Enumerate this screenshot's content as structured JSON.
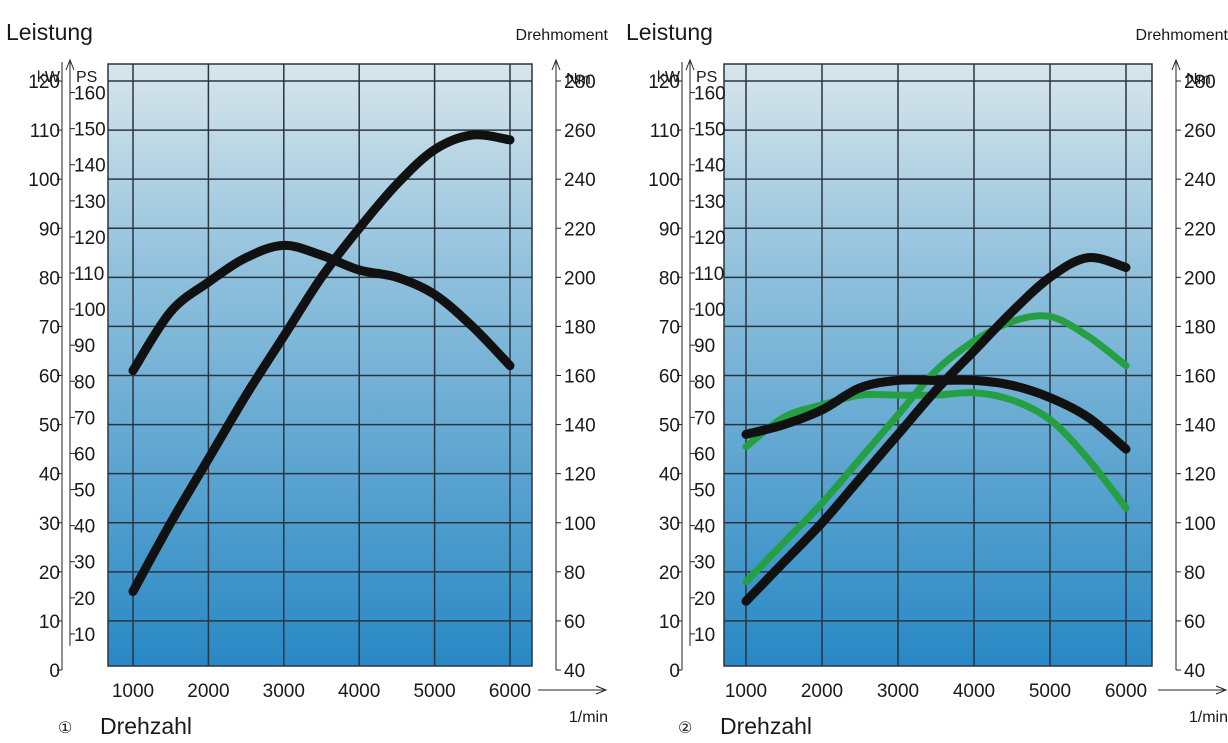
{
  "chart_data": [
    {
      "type": "line",
      "number": "①",
      "title_left": "Leistung",
      "title_right": "Drehmoment",
      "xlabel": "Drehzahl",
      "xunit": "1/min",
      "kw_unit": "kW",
      "ps_unit": "PS",
      "nm_unit": "Nm",
      "x_ticks": [
        "1000",
        "2000",
        "3000",
        "4000",
        "5000",
        "6000"
      ],
      "kw_ticks": [
        "0",
        "10",
        "20",
        "30",
        "40",
        "50",
        "60",
        "70",
        "80",
        "90",
        "100",
        "110",
        "120"
      ],
      "ps_ticks": [
        "10",
        "20",
        "30",
        "40",
        "50",
        "60",
        "70",
        "80",
        "90",
        "100",
        "110",
        "120",
        "130",
        "140",
        "150",
        "160"
      ],
      "nm_ticks": [
        "40",
        "60",
        "80",
        "100",
        "120",
        "140",
        "160",
        "180",
        "200",
        "220",
        "240",
        "260",
        "280"
      ],
      "xlim": [
        1000,
        6000
      ],
      "kw_lim": [
        0,
        120
      ],
      "nm_lim": [
        40,
        280
      ],
      "grid": true,
      "colors": {
        "black": "#111111",
        "green": "#24a043",
        "plot_top": "#d8e6ec",
        "plot_bottom": "#2888c4"
      },
      "series": [
        {
          "color": "black",
          "axis": "nm",
          "x": [
            1000,
            1500,
            2000,
            2500,
            3000,
            3500,
            4000,
            4500,
            5000,
            5500,
            6000
          ],
          "y": [
            162,
            186,
            198,
            208,
            213,
            209,
            203,
            200,
            193,
            180,
            164
          ]
        },
        {
          "color": "black",
          "axis": "kw",
          "x": [
            1000,
            1500,
            2000,
            2500,
            3000,
            3500,
            4000,
            4500,
            5000,
            5500,
            6000
          ],
          "y": [
            16,
            30,
            43,
            56,
            68,
            80,
            90,
            99,
            106,
            109,
            108
          ]
        }
      ]
    },
    {
      "type": "line",
      "number": "②",
      "title_left": "Leistung",
      "title_right": "Drehmoment",
      "xlabel": "Drehzahl",
      "xunit": "1/min",
      "kw_unit": "kW",
      "ps_unit": "PS",
      "nm_unit": "Nm",
      "x_ticks": [
        "1000",
        "2000",
        "3000",
        "4000",
        "5000",
        "6000"
      ],
      "kw_ticks": [
        "0",
        "10",
        "20",
        "30",
        "40",
        "50",
        "60",
        "70",
        "80",
        "90",
        "100",
        "110",
        "120"
      ],
      "ps_ticks": [
        "10",
        "20",
        "30",
        "40",
        "50",
        "60",
        "70",
        "80",
        "90",
        "100",
        "110",
        "120",
        "130",
        "140",
        "150",
        "160"
      ],
      "nm_ticks": [
        "40",
        "60",
        "80",
        "100",
        "120",
        "140",
        "160",
        "180",
        "200",
        "220",
        "240",
        "260",
        "280"
      ],
      "xlim": [
        1000,
        6000
      ],
      "kw_lim": [
        0,
        120
      ],
      "nm_lim": [
        40,
        280
      ],
      "grid": true,
      "colors": {
        "black": "#111111",
        "green": "#24a043",
        "plot_top": "#d8e6ec",
        "plot_bottom": "#2888c4"
      },
      "series": [
        {
          "color": "green",
          "axis": "nm",
          "x": [
            1000,
            1500,
            2000,
            2500,
            3000,
            3500,
            4000,
            4500,
            5000,
            5500,
            6000
          ],
          "y": [
            131,
            143,
            148,
            152,
            152,
            152,
            153,
            150,
            142,
            126,
            106
          ]
        },
        {
          "color": "green",
          "axis": "kw",
          "x": [
            1000,
            1500,
            2000,
            2500,
            3000,
            3500,
            4000,
            4500,
            5000,
            5500,
            6000
          ],
          "y": [
            18,
            26,
            34,
            43,
            52,
            61,
            67,
            71,
            72,
            68,
            62
          ]
        },
        {
          "color": "black",
          "axis": "nm",
          "x": [
            1000,
            1500,
            2000,
            2500,
            3000,
            3500,
            4000,
            4500,
            5000,
            5500,
            6000
          ],
          "y": [
            136,
            140,
            146,
            155,
            158,
            158,
            158,
            156,
            151,
            143,
            130
          ]
        },
        {
          "color": "black",
          "axis": "kw",
          "x": [
            1000,
            1500,
            2000,
            2500,
            3000,
            3500,
            4000,
            4500,
            5000,
            5500,
            6000
          ],
          "y": [
            14,
            22,
            30,
            39,
            48,
            57,
            65,
            73,
            80,
            84,
            82
          ]
        }
      ]
    }
  ]
}
